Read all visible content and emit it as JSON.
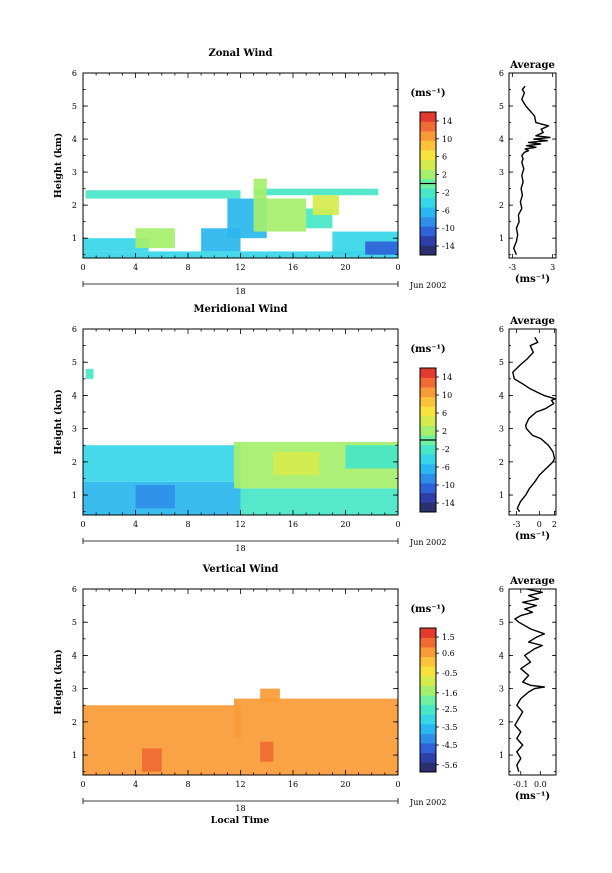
{
  "colormap": [
    "#2b2f6e",
    "#2e3fa8",
    "#2f62d8",
    "#2f8fe8",
    "#2ab6ee",
    "#35d6e8",
    "#46e6c7",
    "#6ff0a0",
    "#a6ef6c",
    "#d6ec4d",
    "#f7e23f",
    "#fbc23a",
    "#f89a36",
    "#f06a33",
    "#e23a2f"
  ],
  "date_label": "Jun 2002",
  "xlabel": "Local Time",
  "ylabel": "Height (km)",
  "unit_label": "(ms⁻¹)",
  "profile_xlabel": "(ms⁻¹)",
  "profile_title": "Average",
  "chart_data": [
    {
      "type": "heatmap",
      "title": "Zonal Wind",
      "xlabel": "",
      "ylabel": "Height (km)",
      "x_ticks": [
        "0",
        "4",
        "8",
        "12",
        "16",
        "20",
        "0"
      ],
      "x_range": [
        0,
        24
      ],
      "day_label": "18",
      "y_ticks": [
        "1",
        "2",
        "3",
        "4",
        "5",
        "6"
      ],
      "ylim": [
        0.4,
        6
      ],
      "colorbar": {
        "unit": "(ms⁻¹)",
        "ticks": [
          "14",
          "10",
          "6",
          "2",
          "-2",
          "-6",
          "-10",
          "-14"
        ],
        "range": [
          -16,
          16
        ],
        "contour": 0
      },
      "cells": [
        {
          "x0": 0.2,
          "x1": 12,
          "y0": 2.2,
          "y1": 2.45,
          "v": -2
        },
        {
          "x0": 13,
          "x1": 22.5,
          "y0": 2.3,
          "y1": 2.5,
          "v": -2
        },
        {
          "x0": 0,
          "x1": 24,
          "y0": 0.4,
          "y1": 0.6,
          "v": -4
        },
        {
          "x0": 0,
          "x1": 5,
          "y0": 0.6,
          "y1": 1.0,
          "v": -4
        },
        {
          "x0": 4,
          "x1": 7,
          "y0": 0.7,
          "y1": 1.3,
          "v": 2
        },
        {
          "x0": 9,
          "x1": 12,
          "y0": 0.6,
          "y1": 1.3,
          "v": -6
        },
        {
          "x0": 11,
          "x1": 14,
          "y0": 1.0,
          "y1": 2.2,
          "v": -6
        },
        {
          "x0": 13,
          "x1": 14,
          "y0": 1.2,
          "y1": 2.8,
          "v": 2
        },
        {
          "x0": 14,
          "x1": 17,
          "y0": 1.2,
          "y1": 2.2,
          "v": 2
        },
        {
          "x0": 17,
          "x1": 19,
          "y0": 1.3,
          "y1": 1.9,
          "v": -2
        },
        {
          "x0": 17.5,
          "x1": 19.5,
          "y0": 1.7,
          "y1": 2.3,
          "v": 4
        },
        {
          "x0": 19,
          "x1": 24,
          "y0": 0.5,
          "y1": 1.2,
          "v": -4
        },
        {
          "x0": 21.5,
          "x1": 24,
          "y0": 0.5,
          "y1": 0.9,
          "v": -10
        }
      ]
    },
    {
      "type": "heatmap",
      "title": "Meridional Wind",
      "xlabel": "",
      "ylabel": "Height (km)",
      "x_ticks": [
        "0",
        "4",
        "8",
        "12",
        "16",
        "20",
        "0"
      ],
      "x_range": [
        0,
        24
      ],
      "day_label": "18",
      "y_ticks": [
        "1",
        "2",
        "3",
        "4",
        "5",
        "6"
      ],
      "ylim": [
        0.4,
        6
      ],
      "colorbar": {
        "unit": "(ms⁻¹)",
        "ticks": [
          "14",
          "10",
          "6",
          "2",
          "-2",
          "-6",
          "-10",
          "-14"
        ],
        "range": [
          -16,
          16
        ],
        "contour": 0
      },
      "cells": [
        {
          "x0": 0,
          "x1": 12,
          "y0": 1.4,
          "y1": 2.5,
          "v": -4
        },
        {
          "x0": 0,
          "x1": 12,
          "y0": 0.4,
          "y1": 1.4,
          "v": -6
        },
        {
          "x0": 4,
          "x1": 7,
          "y0": 0.6,
          "y1": 1.3,
          "v": -8
        },
        {
          "x0": 12,
          "x1": 24,
          "y0": 0.4,
          "y1": 1.2,
          "v": -2
        },
        {
          "x0": 11.5,
          "x1": 24,
          "y0": 1.2,
          "y1": 2.6,
          "v": 2
        },
        {
          "x0": 14.5,
          "x1": 18,
          "y0": 1.6,
          "y1": 2.3,
          "v": 5
        },
        {
          "x0": 20,
          "x1": 24,
          "y0": 1.8,
          "y1": 2.5,
          "v": -2
        },
        {
          "x0": 0.2,
          "x1": 0.8,
          "y0": 4.5,
          "y1": 4.8,
          "v": -2
        }
      ]
    },
    {
      "type": "heatmap",
      "title": "Vertical Wind",
      "xlabel": "Local Time",
      "ylabel": "Height (km)",
      "x_ticks": [
        "0",
        "4",
        "8",
        "12",
        "16",
        "20",
        "0"
      ],
      "x_range": [
        0,
        24
      ],
      "day_label": "18",
      "y_ticks": [
        "1",
        "2",
        "3",
        "4",
        "5",
        "6"
      ],
      "ylim": [
        0.4,
        6
      ],
      "colorbar": {
        "unit": "(ms⁻¹)",
        "ticks": [
          "1.5",
          "0.6",
          "-0.5",
          "-1.6",
          "-2.5",
          "-3.5",
          "-4.5",
          "-5.6"
        ],
        "range": [
          -6,
          2
        ]
      },
      "cells": [
        {
          "x0": 0,
          "x1": 24,
          "y0": 0.4,
          "y1": 1.5,
          "v": 0.6
        },
        {
          "x0": 0,
          "x1": 12,
          "y0": 1.5,
          "y1": 2.5,
          "v": 0.8
        },
        {
          "x0": 11.5,
          "x1": 24,
          "y0": 1.5,
          "y1": 2.7,
          "v": 0.8
        },
        {
          "x0": 13.5,
          "x1": 15,
          "y0": 2.6,
          "y1": 3.0,
          "v": 0.6
        },
        {
          "x0": 4.5,
          "x1": 6,
          "y0": 0.5,
          "y1": 1.2,
          "v": 1.2
        },
        {
          "x0": 13.5,
          "x1": 14.5,
          "y0": 0.8,
          "y1": 1.4,
          "v": 1.3
        }
      ]
    },
    {
      "type": "line",
      "title": "Average",
      "xlabel": "(ms⁻¹)",
      "x_ticks": [
        "-3",
        "3"
      ],
      "xlim": [
        -3.5,
        3.5
      ],
      "y_ticks": [
        "1",
        "2",
        "3",
        "4",
        "5",
        "6"
      ],
      "ylim": [
        0.4,
        6
      ],
      "x": [
        -2.4,
        -2.6,
        -2.8,
        -2.4,
        -2.2,
        -2.4,
        -2.0,
        -2.1,
        -1.6,
        -1.8,
        -1.5,
        -1.7,
        -1.4,
        -1.6,
        -1.3,
        -1.6,
        -1.4,
        -1.6,
        -1.2,
        -0.6,
        -1.1,
        0.5,
        -0.9,
        1.2,
        -0.6,
        2.2,
        0.2,
        2.6,
        0.5,
        1.6,
        1.3,
        2.4,
        0.5,
        0.3,
        -1.0,
        -1.6,
        -1.2,
        -1.5,
        -1.1
      ],
      "y": [
        0.5,
        0.6,
        0.7,
        0.9,
        1.1,
        1.3,
        1.5,
        1.7,
        1.9,
        2.1,
        2.3,
        2.5,
        2.7,
        2.9,
        3.1,
        3.3,
        3.4,
        3.5,
        3.6,
        3.65,
        3.7,
        3.75,
        3.8,
        3.85,
        3.9,
        3.95,
        4.0,
        4.05,
        4.1,
        4.2,
        4.3,
        4.4,
        4.5,
        4.7,
        5.0,
        5.2,
        5.4,
        5.5,
        5.6
      ]
    },
    {
      "type": "line",
      "title": "Average",
      "xlabel": "(ms⁻¹)",
      "x_ticks": [
        "-3",
        "0",
        "2"
      ],
      "xlim": [
        -4,
        2.2
      ],
      "y_ticks": [
        "1",
        "2",
        "3",
        "4",
        "5",
        "6"
      ],
      "ylim": [
        0.4,
        6
      ],
      "x": [
        -2.6,
        -2.9,
        -2.5,
        -1.8,
        -1.3,
        -0.6,
        0.0,
        0.9,
        1.8,
        2.0,
        1.8,
        1.2,
        0.2,
        -0.9,
        -1.7,
        -1.8,
        -1.4,
        -0.4,
        0.8,
        1.5,
        1.9,
        1.6,
        2.1,
        0.6,
        -0.3,
        -1.2,
        -2.2,
        -3.3,
        -3.5,
        -2.6,
        -1.6,
        -0.8,
        -1.2,
        -0.2,
        -0.6
      ],
      "y": [
        0.5,
        0.6,
        0.8,
        1.0,
        1.2,
        1.4,
        1.6,
        1.8,
        2.0,
        2.1,
        2.3,
        2.5,
        2.7,
        2.8,
        3.0,
        3.1,
        3.3,
        3.5,
        3.6,
        3.7,
        3.75,
        3.85,
        3.9,
        4.0,
        4.1,
        4.2,
        4.35,
        4.5,
        4.7,
        4.9,
        5.1,
        5.3,
        5.5,
        5.6,
        5.75
      ]
    },
    {
      "type": "line",
      "title": "Average",
      "xlabel": "(ms⁻¹)",
      "x_ticks": [
        "-0.1",
        "0.0"
      ],
      "xlim": [
        -0.16,
        0.08
      ],
      "y_ticks": [
        "1",
        "2",
        "3",
        "4",
        "5",
        "6"
      ],
      "ylim": [
        0.4,
        6
      ],
      "x": [
        -0.11,
        -0.12,
        -0.1,
        -0.12,
        -0.09,
        -0.12,
        -0.1,
        -0.13,
        -0.11,
        -0.09,
        -0.12,
        -0.1,
        -0.08,
        -0.06,
        -0.03,
        0.02,
        -0.05,
        -0.09,
        -0.06,
        -0.1,
        -0.05,
        -0.08,
        -0.03,
        0.01,
        -0.06,
        -0.02,
        0.02,
        -0.05,
        -0.11,
        -0.13,
        -0.1,
        -0.04,
        -0.08,
        -0.02,
        -0.09,
        -0.01,
        -0.06,
        0.01,
        -0.07
      ],
      "y": [
        0.5,
        0.7,
        0.9,
        1.1,
        1.3,
        1.5,
        1.7,
        1.9,
        2.1,
        2.3,
        2.5,
        2.7,
        2.8,
        2.9,
        3.0,
        3.05,
        3.1,
        3.2,
        3.4,
        3.6,
        3.8,
        4.0,
        4.2,
        4.3,
        4.4,
        4.55,
        4.65,
        4.8,
        5.0,
        5.1,
        5.2,
        5.3,
        5.4,
        5.5,
        5.6,
        5.7,
        5.8,
        5.9,
        6.0
      ]
    }
  ]
}
